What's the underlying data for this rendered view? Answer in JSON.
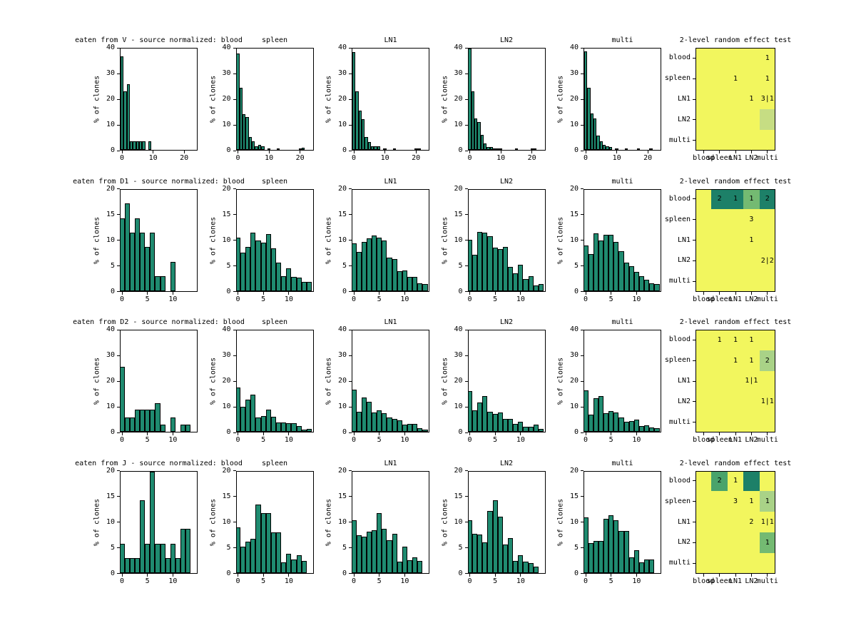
{
  "figure_background": "#ffffff",
  "chart_data": {
    "type": "bar",
    "subtype": "histogram-grid-with-significance-heatmaps",
    "ylabel": "% of clones",
    "tissues": [
      "blood",
      "spleen",
      "LN1",
      "LN2",
      "multi"
    ],
    "bar_color": "#1f8b70",
    "bar_edge_color": "#000000",
    "heatmap_palette": {
      "yellow": "#f2f65e",
      "pale_green": "#c6dd83",
      "light_green": "#a9d287",
      "medium_green": "#74ba72",
      "medium_dark_green": "#4aa36b",
      "dark_teal": "#1d8068"
    },
    "rows": [
      {
        "source": "V",
        "row_title": "eaten from V - source normalized: blood",
        "ylim": [
          0,
          40
        ],
        "yticks": [
          0,
          10,
          20,
          30,
          40
        ],
        "xticks": [
          0,
          10,
          20
        ],
        "bin_width": 1,
        "histograms": [
          {
            "title": "blood",
            "values": [
              37,
              23,
              26,
              3.3,
              3.3,
              3.3,
              3.3,
              3.3,
              0,
              3.3
            ]
          },
          {
            "title": "spleen",
            "values": [
              38,
              24.5,
              14,
              13,
              5,
              3.5,
              1.3,
              2,
              1.5,
              0,
              0.4,
              0,
              0,
              0.4,
              0,
              0,
              0,
              0,
              0,
              0,
              0.3,
              0.8
            ]
          },
          {
            "title": "LN1",
            "values": [
              38.5,
              23,
              15.5,
              12,
              5,
              3,
              1.5,
              1.5,
              1.5,
              0,
              0.3,
              0,
              0,
              0.3,
              0,
              0,
              0,
              0,
              0,
              0,
              0.3,
              0.3
            ]
          },
          {
            "title": "LN2",
            "values": [
              40,
              23,
              12.5,
              11,
              6,
              2.5,
              1,
              1,
              0.5,
              0.5,
              0.3,
              0,
              0,
              0,
              0,
              0.2,
              0,
              0,
              0,
              0,
              0.2,
              0.5
            ]
          },
          {
            "title": "multi",
            "values": [
              39,
              24.5,
              14.5,
              12.5,
              5.5,
              3.5,
              2,
              1.5,
              1,
              0,
              0.3,
              0,
              0,
              0.3,
              0,
              0,
              0,
              0.2,
              0,
              0,
              0,
              0.3
            ]
          }
        ],
        "heatmap": {
          "title": "2-level random effect test",
          "row_labels": [
            "blood",
            "spleen",
            "LN1",
            "LN2",
            "multi"
          ],
          "col_labels": [
            "blood",
            "spleen",
            "LN1",
            "LN2",
            "multi"
          ],
          "cell_text": [
            [
              "",
              "",
              "",
              "",
              "1"
            ],
            [
              "",
              "",
              "1",
              "",
              "1"
            ],
            [
              "",
              "",
              "",
              "1",
              "3|1"
            ],
            [
              "",
              "",
              "",
              "",
              ""
            ],
            [
              "",
              "",
              "",
              "",
              ""
            ]
          ],
          "cell_color": [
            [
              "yellow",
              "yellow",
              "yellow",
              "yellow",
              "yellow"
            ],
            [
              "yellow",
              "yellow",
              "yellow",
              "yellow",
              "yellow"
            ],
            [
              "yellow",
              "yellow",
              "yellow",
              "yellow",
              "yellow"
            ],
            [
              "yellow",
              "yellow",
              "yellow",
              "yellow",
              "pale_green"
            ],
            [
              "yellow",
              "yellow",
              "yellow",
              "yellow",
              "yellow"
            ]
          ]
        }
      },
      {
        "source": "D1",
        "row_title": "eaten from D1 - source normalized: blood",
        "ylim": [
          0,
          20
        ],
        "yticks": [
          0,
          5,
          10,
          15,
          20
        ],
        "xticks": [
          0,
          5,
          10
        ],
        "bin_width": 1,
        "histograms": [
          {
            "title": "blood",
            "values": [
              14.3,
              17.2,
              11.5,
              14.3,
              11.5,
              8.6,
              11.5,
              2.9,
              2.9,
              0,
              5.7
            ]
          },
          {
            "title": "spleen",
            "values": [
              10.5,
              7.6,
              8.6,
              11.5,
              10,
              9.5,
              11.2,
              8.4,
              5.6,
              2.9,
              4.5,
              2.8,
              2.6,
              1.8,
              1.8
            ]
          },
          {
            "title": "LN1",
            "values": [
              9.4,
              7.7,
              9.7,
              10.4,
              10.9,
              10.5,
              9.9,
              6.6,
              6.3,
              3.9,
              4,
              2.7,
              2.7,
              1.5,
              1.4
            ]
          },
          {
            "title": "LN2",
            "values": [
              10.1,
              7.1,
              11.6,
              11.5,
              10.8,
              8.5,
              8.3,
              8.7,
              4.7,
              3.4,
              5.1,
              2.3,
              2.9,
              1.1,
              1.3
            ]
          },
          {
            "title": "multi",
            "values": [
              9,
              7.2,
              11.4,
              9.9,
              11,
              11.1,
              9.6,
              7.8,
              5.6,
              4.9,
              3.7,
              2.9,
              2.2,
              1.5,
              1.3
            ]
          }
        ],
        "heatmap": {
          "title": "2-level random effect test",
          "row_labels": [
            "blood",
            "spleen",
            "LN1",
            "LN2",
            "multi"
          ],
          "col_labels": [
            "blood",
            "spleen",
            "LN1",
            "LN2",
            "multi"
          ],
          "cell_text": [
            [
              "",
              "2",
              "1",
              "1",
              "2"
            ],
            [
              "",
              "",
              "",
              "3",
              ""
            ],
            [
              "",
              "",
              "",
              "1",
              ""
            ],
            [
              "",
              "",
              "",
              "",
              "2|2"
            ],
            [
              "",
              "",
              "",
              "",
              ""
            ]
          ],
          "cell_color": [
            [
              "yellow",
              "dark_teal",
              "dark_teal",
              "medium_green",
              "dark_teal"
            ],
            [
              "yellow",
              "yellow",
              "yellow",
              "yellow",
              "yellow"
            ],
            [
              "yellow",
              "yellow",
              "yellow",
              "yellow",
              "yellow"
            ],
            [
              "yellow",
              "yellow",
              "yellow",
              "yellow",
              "yellow"
            ],
            [
              "yellow",
              "yellow",
              "yellow",
              "yellow",
              "yellow"
            ]
          ]
        }
      },
      {
        "source": "D2",
        "row_title": "eaten from D2 - source normalized: blood",
        "ylim": [
          0,
          40
        ],
        "yticks": [
          0,
          10,
          20,
          30,
          40
        ],
        "xticks": [
          0,
          5,
          10
        ],
        "bin_width": 1,
        "histograms": [
          {
            "title": "blood",
            "values": [
              25.7,
              5.7,
              5.7,
              8.6,
              8.6,
              8.6,
              8.6,
              11.4,
              2.9,
              0,
              5.7,
              0,
              2.9,
              2.9
            ]
          },
          {
            "title": "spleen",
            "values": [
              17.5,
              9.8,
              12.7,
              14.7,
              5.6,
              6.3,
              8.6,
              5.9,
              3.7,
              3.7,
              3.4,
              3.4,
              2.2,
              0.9,
              1.2
            ]
          },
          {
            "title": "LN1",
            "values": [
              16.7,
              8,
              13.5,
              11.8,
              7.7,
              8.5,
              7.3,
              5.5,
              5,
              4.4,
              2.8,
              3.2,
              3.2,
              1.3,
              0.9
            ]
          },
          {
            "title": "LN2",
            "values": [
              16.1,
              8.5,
              11.5,
              14.1,
              7.9,
              7,
              7.5,
              5,
              5,
              3,
              3.9,
              2.1,
              2.1,
              2.8,
              1.2
            ]
          },
          {
            "title": "multi",
            "values": [
              16.3,
              6.8,
              13.2,
              14,
              7.4,
              8.2,
              7.7,
              5.6,
              3.9,
              4.1,
              4.7,
              2.2,
              2.6,
              1.7,
              1.5
            ]
          }
        ],
        "heatmap": {
          "title": "2-level random effect test",
          "row_labels": [
            "blood",
            "spleen",
            "LN1",
            "LN2",
            "multi"
          ],
          "col_labels": [
            "blood",
            "spleen",
            "LN1",
            "LN2",
            "multi"
          ],
          "cell_text": [
            [
              "",
              "1",
              "1",
              "1",
              ""
            ],
            [
              "",
              "",
              "1",
              "1",
              "2"
            ],
            [
              "",
              "",
              "",
              "1|1",
              ""
            ],
            [
              "",
              "",
              "",
              "",
              "1|1"
            ],
            [
              "",
              "",
              "",
              "",
              ""
            ]
          ],
          "cell_color": [
            [
              "yellow",
              "yellow",
              "yellow",
              "yellow",
              "yellow"
            ],
            [
              "yellow",
              "yellow",
              "yellow",
              "yellow",
              "light_green"
            ],
            [
              "yellow",
              "yellow",
              "yellow",
              "yellow",
              "yellow"
            ],
            [
              "yellow",
              "yellow",
              "yellow",
              "yellow",
              "yellow"
            ],
            [
              "yellow",
              "yellow",
              "yellow",
              "yellow",
              "yellow"
            ]
          ]
        }
      },
      {
        "source": "J",
        "row_title": "eaten from J - source normalized: blood",
        "ylim": [
          0,
          20
        ],
        "yticks": [
          0,
          5,
          10,
          15,
          20
        ],
        "xticks": [
          0,
          5,
          10
        ],
        "bin_width": 1,
        "histograms": [
          {
            "title": "blood",
            "values": [
              5.7,
              2.9,
              2.9,
              2.9,
              14.3,
              5.7,
              20,
              5.7,
              5.7,
              2.9,
              5.7,
              2.9,
              8.6,
              8.6
            ]
          },
          {
            "title": "spleen",
            "values": [
              8.9,
              5.2,
              6.1,
              6.7,
              13.5,
              11.7,
              11.7,
              7.9,
              8,
              2,
              3.7,
              2.6,
              3.4,
              2.3
            ]
          },
          {
            "title": "LN1",
            "values": [
              10.4,
              7.4,
              7.1,
              8.1,
              8.4,
              11.8,
              8.6,
              6.4,
              7.7,
              2.2,
              5.2,
              2.4,
              3.1,
              2.3
            ]
          },
          {
            "title": "LN2",
            "values": [
              10.3,
              7.7,
              7.5,
              6,
              12.2,
              14.3,
              11,
              5.6,
              6.9,
              2.3,
              3.4,
              2.2,
              1.9,
              1.2
            ]
          },
          {
            "title": "multi",
            "values": [
              10.9,
              5.9,
              6.2,
              6.2,
              10.7,
              11.3,
              10.4,
              8.2,
              8.3,
              3.1,
              4.4,
              2.1,
              2.6,
              2.6
            ]
          }
        ],
        "heatmap": {
          "title": "2-level random effect test",
          "row_labels": [
            "blood",
            "spleen",
            "LN1",
            "LN2",
            "multi"
          ],
          "col_labels": [
            "blood",
            "spleen",
            "LN1",
            "LN2",
            "multi"
          ],
          "cell_text": [
            [
              "",
              "2",
              "1",
              "",
              ""
            ],
            [
              "",
              "",
              "3",
              "1",
              "1"
            ],
            [
              "",
              "",
              "",
              "2",
              "1|1"
            ],
            [
              "",
              "",
              "",
              "",
              "1"
            ],
            [
              "",
              "",
              "",
              "",
              ""
            ]
          ],
          "cell_color": [
            [
              "yellow",
              "medium_dark_green",
              "yellow",
              "dark_teal",
              "yellow"
            ],
            [
              "yellow",
              "yellow",
              "yellow",
              "yellow",
              "light_green"
            ],
            [
              "yellow",
              "yellow",
              "yellow",
              "yellow",
              "yellow"
            ],
            [
              "yellow",
              "yellow",
              "yellow",
              "yellow",
              "medium_green"
            ],
            [
              "yellow",
              "yellow",
              "yellow",
              "yellow",
              "yellow"
            ]
          ]
        }
      }
    ]
  }
}
